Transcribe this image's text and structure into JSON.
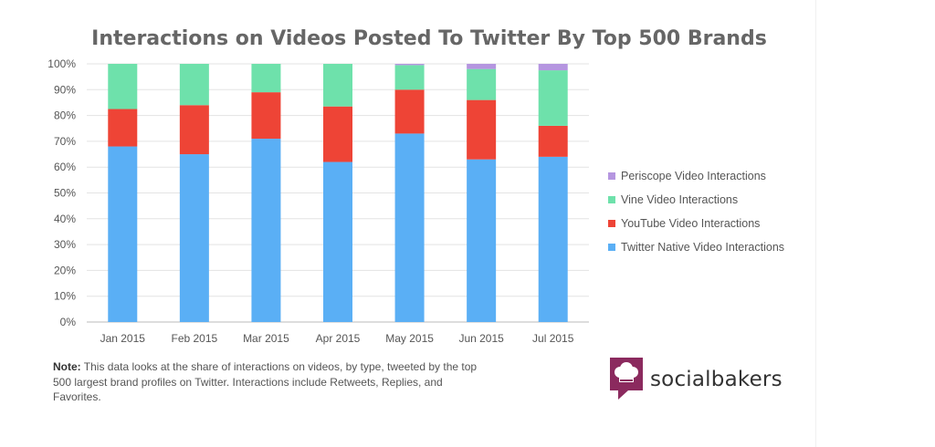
{
  "chart_data": {
    "type": "bar",
    "stacked": true,
    "title": "Interactions on Videos Posted To Twitter By Top 500 Brands",
    "categories": [
      "Jan 2015",
      "Feb 2015",
      "Mar 2015",
      "Apr 2015",
      "May 2015",
      "Jun 2015",
      "Jul 2015"
    ],
    "series": [
      {
        "name": "Twitter Native Video Interactions",
        "color": "#5aaff5",
        "values": [
          68,
          65,
          71,
          62,
          73,
          63,
          64
        ]
      },
      {
        "name": "YouTube Video Interactions",
        "color": "#ee4436",
        "values": [
          14.5,
          19,
          18,
          21.5,
          17,
          23,
          12
        ]
      },
      {
        "name": "Vine Video Interactions",
        "color": "#6ee1ab",
        "values": [
          17.5,
          16,
          11,
          16.5,
          9.5,
          12,
          21.5
        ]
      },
      {
        "name": "Periscope Video Interactions",
        "color": "#b596e0",
        "values": [
          0,
          0,
          0,
          0,
          0.5,
          2,
          2.5
        ]
      }
    ],
    "yticks": [
      "0%",
      "10%",
      "20%",
      "30%",
      "40%",
      "50%",
      "60%",
      "70%",
      "80%",
      "90%",
      "100%"
    ],
    "ylim": [
      0,
      100
    ],
    "grid": true,
    "legend_position": "right"
  },
  "legend_order": [
    3,
    2,
    1,
    0
  ],
  "note": {
    "label": "Note:",
    "text": "This data looks at the share of interactions on videos, by type, tweeted by the top 500 largest brand profiles on Twitter. Interactions include Retweets, Replies, and Favorites."
  },
  "brand": {
    "name": "socialbakers",
    "color": "#8b2a5e"
  }
}
